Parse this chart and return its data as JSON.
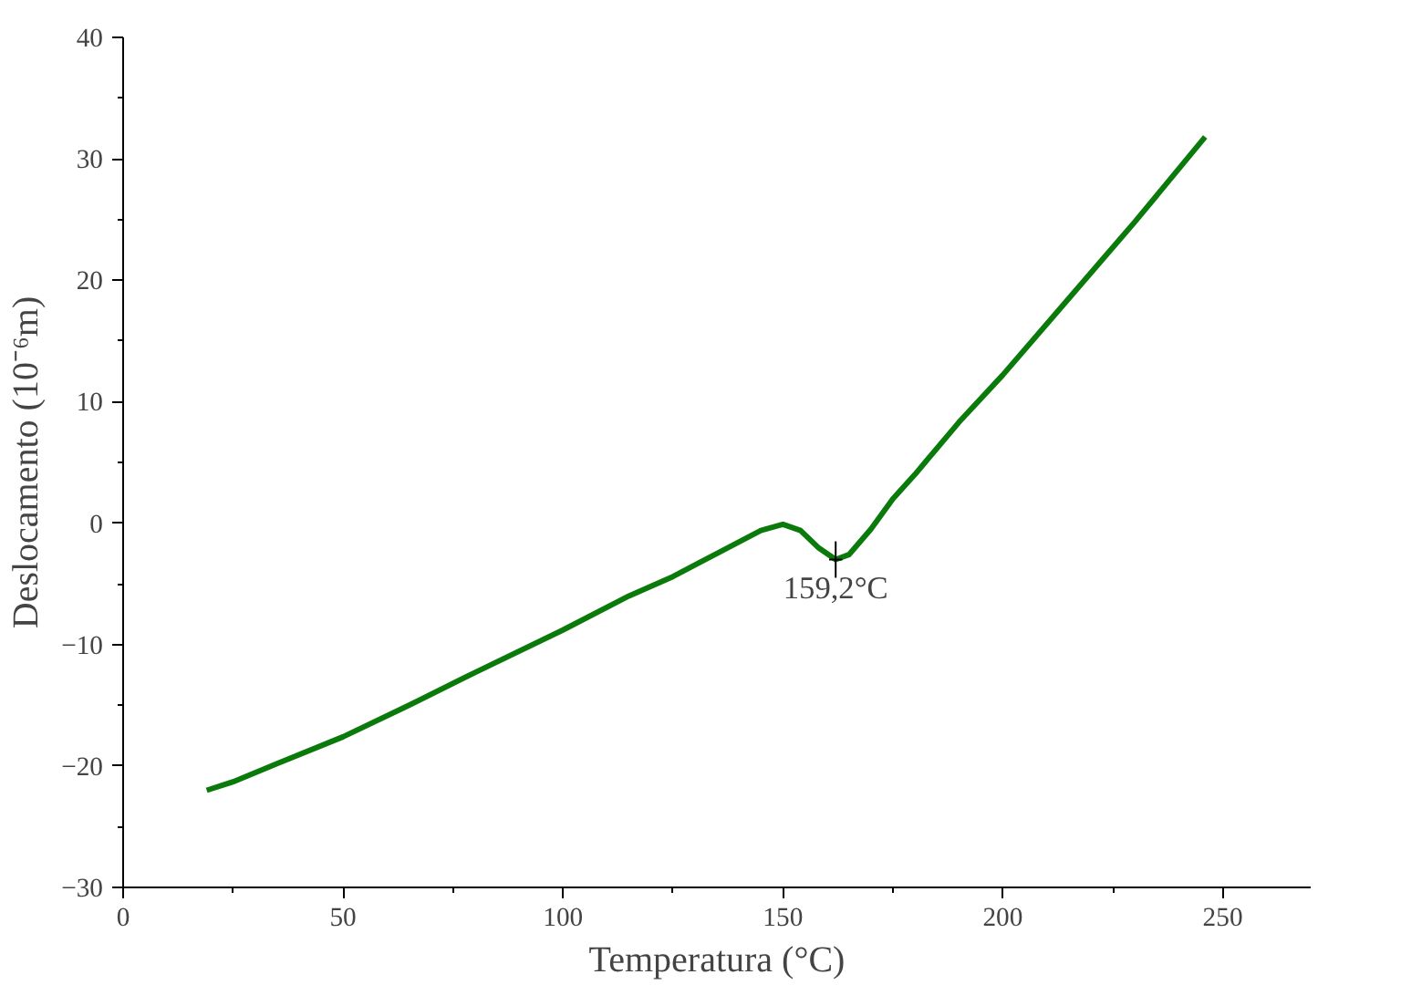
{
  "chart_data": {
    "type": "line",
    "xlabel": "Temperatura (°C)",
    "ylabel": "Deslocamento (10⁻⁶m)",
    "x": [
      19,
      25,
      35,
      50,
      65,
      80,
      100,
      115,
      125,
      135,
      145,
      150,
      154,
      158,
      162,
      165,
      170,
      175,
      180,
      190,
      200,
      215,
      230,
      246
    ],
    "series": [
      {
        "color": "#0a7a0a",
        "values": [
          -22,
          -21.3,
          -19.8,
          -17.6,
          -15,
          -12.3,
          -8.8,
          -6,
          -4.4,
          -2.5,
          -0.6,
          -0.1,
          -0.6,
          -2,
          -3,
          -2.6,
          -0.5,
          2,
          4,
          8.3,
          12.2,
          18.5,
          24.8,
          31.8
        ]
      }
    ],
    "xlim": [
      0,
      270
    ],
    "ylim": [
      -30,
      40
    ],
    "xticks": [
      0,
      {
        "value": 25,
        "label": null
      },
      50,
      {
        "value": 75,
        "label": null
      },
      100,
      {
        "value": 125,
        "label": null
      },
      150,
      {
        "value": 175,
        "label": null
      },
      200,
      {
        "value": 225,
        "label": null
      },
      250
    ],
    "yticks": [
      -30,
      {
        "value": -25,
        "label": null
      },
      -20,
      {
        "value": -15,
        "label": null
      },
      -10,
      {
        "value": -5,
        "label": null
      },
      0,
      {
        "value": 5,
        "label": null
      },
      10,
      {
        "value": 15,
        "label": null
      },
      20,
      {
        "value": 25,
        "label": null
      },
      30,
      {
        "value": 35,
        "label": null
      },
      40
    ],
    "annotations": [
      {
        "text": "159,2°C",
        "x": 162,
        "y": -3
      }
    ],
    "grid": false,
    "marker": "none",
    "line_style": "solid"
  }
}
